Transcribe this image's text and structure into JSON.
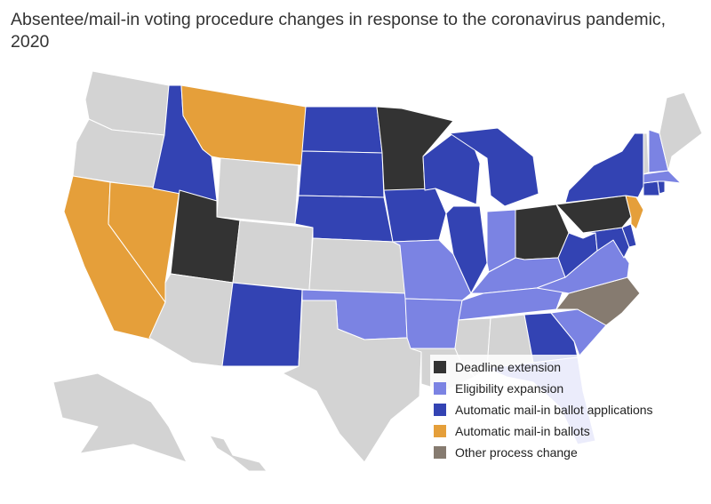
{
  "title": "Absentee/mail-in voting procedure changes in response to the coronavirus pandemic, 2020",
  "colors": {
    "none": "#d3d3d3",
    "deadline": "#333333",
    "eligibility": "#7b83e3",
    "applications": "#3343b3",
    "ballots": "#e59f3a",
    "other": "#867b70"
  },
  "legend": [
    {
      "label": "Deadline extension",
      "color": "#333333"
    },
    {
      "label": "Eligibility expansion",
      "color": "#7b83e3"
    },
    {
      "label": "Automatic mail-in ballot applications",
      "color": "#3343b3"
    },
    {
      "label": "Automatic mail-in ballots",
      "color": "#e59f3a"
    },
    {
      "label": "Other process change",
      "color": "#867b70"
    }
  ],
  "states": {
    "WA": "none",
    "OR": "none",
    "CA": "ballots",
    "NV": "ballots",
    "ID": "applications",
    "MT": "ballots",
    "WY": "none",
    "UT": "deadline",
    "AZ": "none",
    "CO": "none",
    "NM": "applications",
    "ND": "applications",
    "SD": "applications",
    "NE": "applications",
    "KS": "none",
    "OK": "eligibility",
    "TX": "none",
    "MN": "deadline",
    "IA": "applications",
    "MO": "eligibility",
    "AR": "eligibility",
    "LA": "none",
    "WI": "applications",
    "IL": "applications",
    "MI": "applications",
    "IN": "eligibility",
    "OH": "deadline",
    "KY": "eligibility",
    "TN": "eligibility",
    "MS": "none",
    "AL": "none",
    "GA": "applications",
    "FL": "eligibility",
    "SC": "eligibility",
    "NC": "other",
    "VA": "eligibility",
    "WV": "applications",
    "MD": "applications",
    "DE": "applications",
    "PA": "deadline",
    "NJ": "ballots",
    "NY": "applications",
    "CT": "applications",
    "RI": "applications",
    "MA": "eligibility",
    "VT": "none",
    "NH": "eligibility",
    "ME": "none",
    "AK": "none",
    "HI": "none"
  }
}
